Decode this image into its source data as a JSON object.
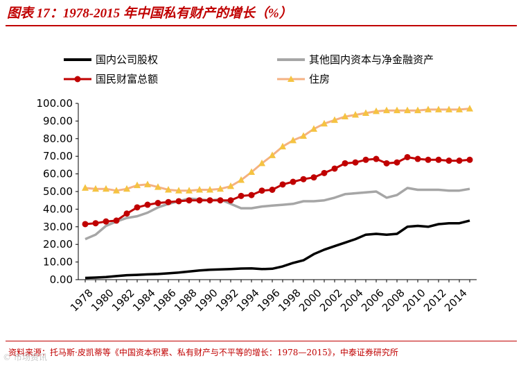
{
  "header": {
    "title": "图表 17：1978-2015 年中国私有财产的增长（%）"
  },
  "footer": {
    "source": "资料来源：托马斯·皮凯蒂等《中国资本积累、私有财产与不平等的增长：1978—2015》，中泰证券研究所",
    "watermark": "© 市场资讯"
  },
  "legend": [
    {
      "label": "国内公司股权",
      "color": "#000000",
      "marker": "none"
    },
    {
      "label": "其他国内资本与净金融资产",
      "color": "#a6a6a6",
      "marker": "none"
    },
    {
      "label": "国民财富总额",
      "color": "#c00000",
      "marker": "circle"
    },
    {
      "label": "住房",
      "color": "#f4b183",
      "marker": "triangle"
    }
  ],
  "chart_data": {
    "type": "line",
    "title": "1978-2015 年中国私有财产的增长（%）",
    "xlabel": "",
    "ylabel": "",
    "ylim": [
      0,
      100
    ],
    "yticks": [
      "0.00",
      "10.00",
      "20.00",
      "30.00",
      "40.00",
      "50.00",
      "60.00",
      "70.00",
      "80.00",
      "90.00",
      "100.00"
    ],
    "xtick_labels": [
      "1978",
      "1980",
      "1982",
      "1984",
      "1986",
      "1988",
      "1990",
      "1992",
      "1994",
      "1996",
      "1998",
      "2000",
      "2002",
      "2004",
      "2006",
      "2008",
      "2010",
      "2012",
      "2014"
    ],
    "x": [
      1978,
      1979,
      1980,
      1981,
      1982,
      1983,
      1984,
      1985,
      1986,
      1987,
      1988,
      1989,
      1990,
      1991,
      1992,
      1993,
      1994,
      1995,
      1996,
      1997,
      1998,
      1999,
      2000,
      2001,
      2002,
      2003,
      2004,
      2005,
      2006,
      2007,
      2008,
      2009,
      2010,
      2011,
      2012,
      2013,
      2014,
      2015
    ],
    "series": [
      {
        "name": "国内公司股权",
        "color": "#000000",
        "marker": "none",
        "values": [
          1.0,
          1.2,
          1.5,
          2.0,
          2.5,
          2.7,
          3.0,
          3.2,
          3.6,
          4.0,
          4.6,
          5.2,
          5.6,
          5.8,
          6.0,
          6.3,
          6.4,
          6.0,
          6.2,
          7.5,
          9.5,
          11.0,
          14.5,
          17.0,
          19.0,
          21.0,
          23.0,
          25.5,
          26.0,
          25.5,
          26.0,
          30.0,
          30.5,
          30.0,
          31.5,
          32.0,
          32.0,
          33.5
        ]
      },
      {
        "name": "其他国内资本与净金融资产",
        "color": "#a6a6a6",
        "marker": "none",
        "values": [
          23.0,
          25.5,
          30.5,
          33.0,
          35.0,
          36.0,
          38.0,
          41.0,
          43.0,
          44.5,
          46.0,
          45.5,
          45.0,
          45.5,
          43.0,
          40.5,
          40.5,
          41.5,
          42.0,
          42.5,
          43.0,
          44.5,
          44.5,
          45.0,
          46.5,
          48.5,
          49.0,
          49.5,
          50.0,
          46.5,
          48.0,
          52.0,
          51.0,
          51.0,
          51.0,
          50.5,
          50.5,
          51.5
        ]
      },
      {
        "name": "国民财富总额",
        "color": "#c00000",
        "marker": "circle",
        "values": [
          31.5,
          32.0,
          33.0,
          33.5,
          37.5,
          41.0,
          42.5,
          43.5,
          44.0,
          44.5,
          45.0,
          45.0,
          45.0,
          45.0,
          45.0,
          47.5,
          48.0,
          50.5,
          51.0,
          54.0,
          55.5,
          57.0,
          58.0,
          60.5,
          63.0,
          66.0,
          66.5,
          68.0,
          68.5,
          66.0,
          66.5,
          69.5,
          68.5,
          68.0,
          68.0,
          67.5,
          67.5,
          68.0
        ]
      },
      {
        "name": "住房",
        "color": "#f4b183",
        "marker": "triangle",
        "values": [
          52.0,
          51.5,
          51.5,
          50.5,
          51.5,
          53.5,
          54.0,
          52.5,
          51.0,
          50.5,
          50.5,
          51.0,
          51.0,
          51.5,
          53.0,
          56.5,
          61.0,
          66.0,
          70.5,
          75.5,
          79.0,
          81.5,
          85.5,
          88.5,
          90.5,
          92.5,
          93.5,
          94.5,
          95.5,
          96.0,
          96.0,
          96.0,
          96.0,
          96.5,
          96.5,
          96.5,
          96.5,
          97.0
        ]
      }
    ]
  }
}
